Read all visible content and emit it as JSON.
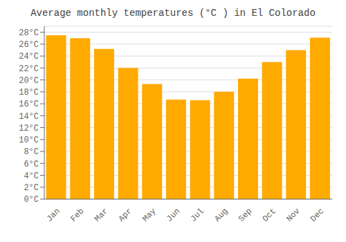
{
  "chart_data": {
    "type": "bar",
    "title": "Average monthly temperatures (°C ) in El Colorado",
    "categories": [
      "Jan",
      "Feb",
      "Mar",
      "Apr",
      "May",
      "Jun",
      "Jul",
      "Aug",
      "Sep",
      "Oct",
      "Nov",
      "Dec"
    ],
    "values": [
      27.5,
      27.0,
      25.2,
      22.0,
      19.3,
      16.7,
      16.6,
      18.0,
      20.2,
      23.0,
      25.0,
      27.1
    ],
    "color": "#FFAA00",
    "ylim": [
      0,
      29
    ],
    "yticks": [
      {
        "value": 0,
        "label": "0°C"
      },
      {
        "value": 2,
        "label": "2°C"
      },
      {
        "value": 4,
        "label": "4°C"
      },
      {
        "value": 6,
        "label": "6°C"
      },
      {
        "value": 8,
        "label": "8°C"
      },
      {
        "value": 10,
        "label": "10°C"
      },
      {
        "value": 12,
        "label": "12°C"
      },
      {
        "value": 14,
        "label": "14°C"
      },
      {
        "value": 16,
        "label": "16°C"
      },
      {
        "value": 18,
        "label": "18°C"
      },
      {
        "value": 20,
        "label": "20°C"
      },
      {
        "value": 22,
        "label": "22°C"
      },
      {
        "value": 24,
        "label": "24°C"
      },
      {
        "value": 26,
        "label": "26°C"
      },
      {
        "value": 28,
        "label": "28°C"
      }
    ],
    "grid": true
  }
}
